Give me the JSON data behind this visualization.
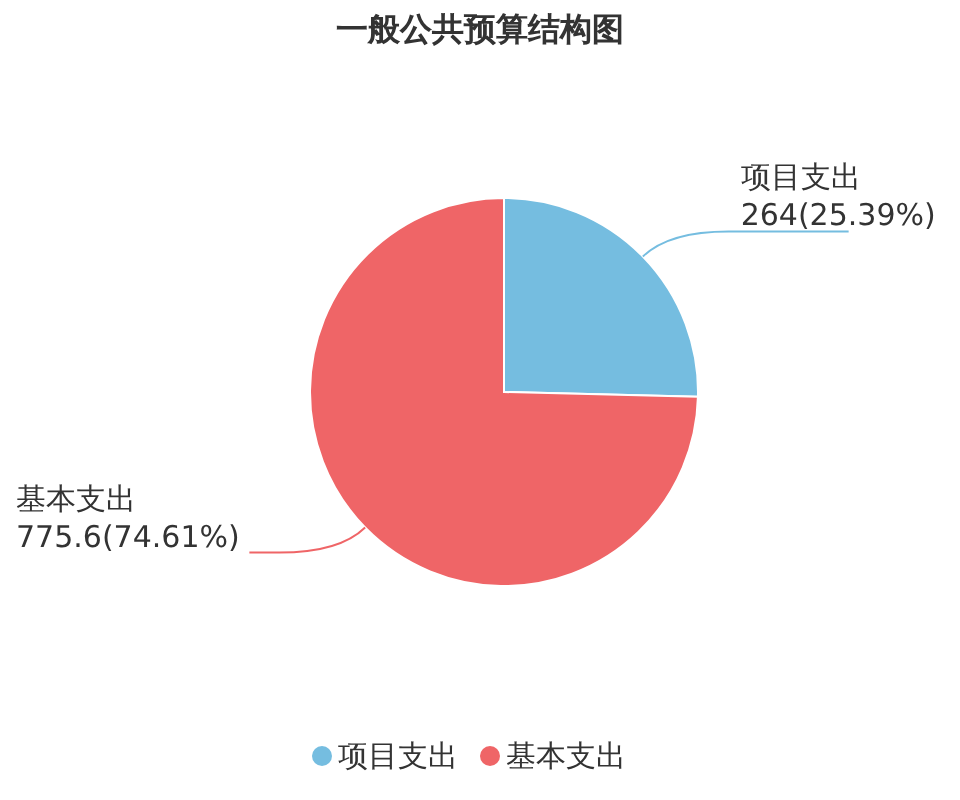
{
  "chart_data": {
    "type": "pie",
    "title": "一般公共预算结构图",
    "categories": [
      "项目支出",
      "基本支出"
    ],
    "values": [
      264,
      775.6
    ],
    "colors": [
      "#75bde0",
      "#ef6567"
    ],
    "value_labels": [
      "264(25.39%)",
      "775.6(74.61%)"
    ],
    "legend": "bottom"
  }
}
